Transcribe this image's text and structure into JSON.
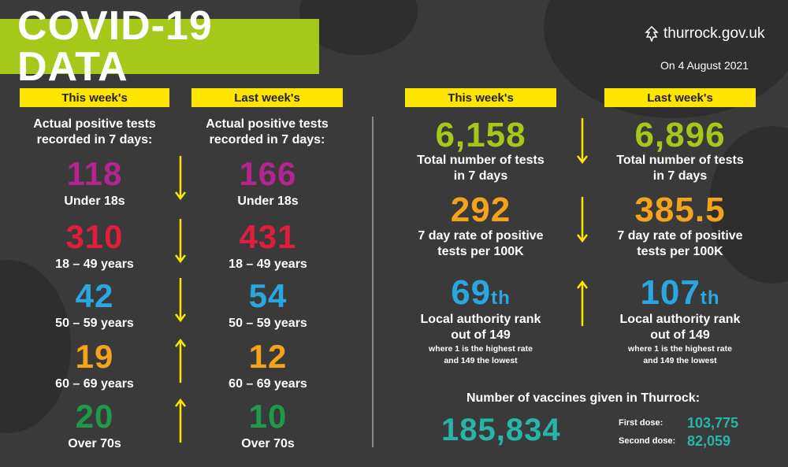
{
  "title": "COVID-19 DATA",
  "source": "thurrock.gov.uk",
  "date": "On 4 August 2021",
  "colors": {
    "background": "#3b3a3a",
    "title_bg": "#a6c81b",
    "header_bg": "#ffe600",
    "magenta": "#b4258f",
    "red": "#e11d3c",
    "blue": "#2aa6e0",
    "orange": "#f5a31a",
    "green": "#1f9a48",
    "lime": "#a6c81b",
    "teal": "#27b5a8"
  },
  "left": {
    "this_week_header": "This week's",
    "last_week_header": "Last week's",
    "caption_line1": "Actual positive tests",
    "caption_line2": "recorded in 7 days:",
    "rows": [
      {
        "this": "118",
        "last": "166",
        "label": "Under 18s",
        "arrow": "down-arrow-icon",
        "color": "#b4258f"
      },
      {
        "this": "310",
        "last": "431",
        "label": "18 – 49 years",
        "arrow": "down-arrow-icon",
        "color": "#e11d3c"
      },
      {
        "this": "42",
        "last": "54",
        "label": "50 – 59 years",
        "arrow": "down-arrow-icon",
        "color": "#2aa6e0"
      },
      {
        "this": "19",
        "last": "12",
        "label": "60 – 69 years",
        "arrow": "up-arrow-icon",
        "color": "#f5a31a"
      },
      {
        "this": "20",
        "last": "10",
        "label": "Over 70s",
        "arrow": "up-arrow-icon",
        "color": "#1f9a48"
      }
    ]
  },
  "right": {
    "this_week_header": "This week's",
    "last_week_header": "Last week's",
    "total_tests": {
      "this": "6,158",
      "last": "6,896",
      "label_line1": "Total number of tests",
      "label_line2": "in 7 days",
      "arrow": "down-arrow-icon"
    },
    "rate": {
      "this": "292",
      "last": "385.5",
      "label_line1": "7 day rate of positive",
      "label_line2": "tests per 100K",
      "arrow": "down-arrow-icon"
    },
    "rank": {
      "this": "69",
      "last": "107",
      "suffix": "th",
      "label_line1": "Local authority rank",
      "label_line2": "out of 149",
      "note_line1": "where 1 is the highest rate",
      "note_line2": "and 149 the lowest",
      "arrow": "up-arrow-icon"
    }
  },
  "vaccines": {
    "heading": "Number of vaccines given in Thurrock:",
    "total": "185,834",
    "first_label": "First dose:",
    "first_value": "103,775",
    "second_label": "Second dose:",
    "second_value": "82,059"
  }
}
